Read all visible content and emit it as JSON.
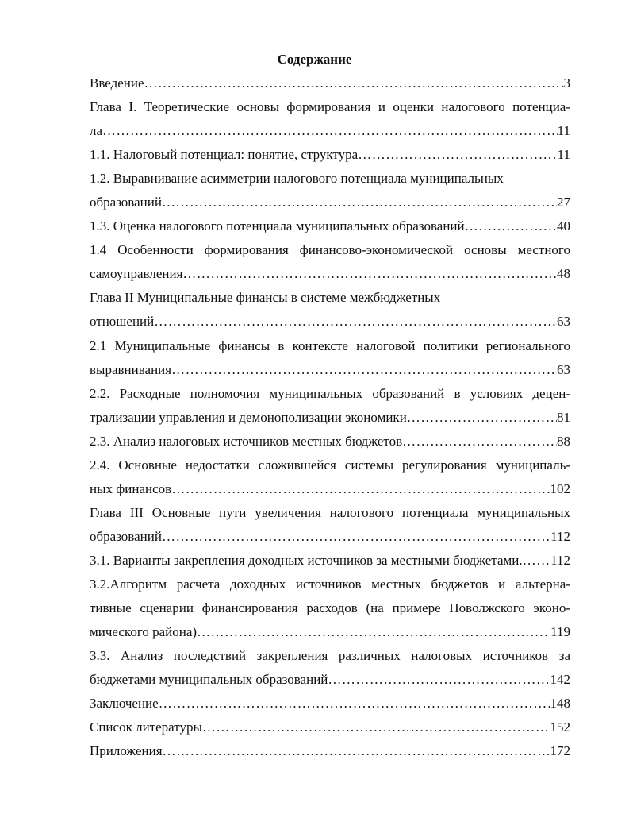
{
  "title": "Содержание",
  "entries": [
    {
      "lines": [],
      "last": "Введение",
      "page": "3"
    },
    {
      "lines": [
        "Глава I. Теоретические основы формирования и оценки налогового потенциа-"
      ],
      "last": "ла",
      "page": "11"
    },
    {
      "lines": [],
      "last": "1.1. Налоговый потенциал: понятие, структура",
      "page": "11"
    },
    {
      "lines": [
        "1.2. Выравнивание асимметрии налогового потенциала муниципальных"
      ],
      "last": "образований ",
      "page": "27"
    },
    {
      "lines": [],
      "last": "1.3. Оценка налогового потенциала муниципальных образований",
      "page": "40"
    },
    {
      "lines": [
        "1.4 Особенности формирования финансово-экономической основы местного"
      ],
      "last": "самоуправления",
      "page": "48"
    },
    {
      "lines": [
        "Глава II Муниципальные финансы в системе межбюджетных"
      ],
      "last": "отношений",
      "page": "63"
    },
    {
      "lines": [
        "2.1 Муниципальные финансы в контексте налоговой политики регионального"
      ],
      "last": "выравнивания",
      "page": "63"
    },
    {
      "lines": [
        "2.2. Расходные полномочия муниципальных образований в условиях децен-"
      ],
      "last": "трализации управления и демонополизации экономики",
      "page": "81"
    },
    {
      "lines": [],
      "last": "2.3. Анализ налоговых источников местных бюджетов ",
      "page": "88"
    },
    {
      "lines": [
        "2.4. Основные недостатки сложившейся системы регулирования муниципаль-"
      ],
      "last": "ных финансов ",
      "page": "102"
    },
    {
      "lines": [
        "Глава III Основные пути увеличения налогового потенциала муниципальных"
      ],
      "last": "образований",
      "page": "112"
    },
    {
      "lines": [],
      "last": "3.1. Варианты закрепления доходных источников за местными бюджетами.",
      "page": "112"
    },
    {
      "lines": [
        "3.2.Алгоритм расчета доходных источников местных бюджетов и альтерна-",
        "тивные сценарии финансирования расходов (на примере Поволжского эконо-"
      ],
      "last": "мического района)",
      "page": "119"
    },
    {
      "lines": [
        "3.3. Анализ последствий закрепления различных налоговых источников за"
      ],
      "last": "бюджетами муниципальных образований",
      "page": "142"
    },
    {
      "lines": [],
      "last": "Заключение",
      "page": "148"
    },
    {
      "lines": [],
      "last": "Список литературы ",
      "page": "152"
    },
    {
      "lines": [],
      "last": "Приложения ",
      "page": "172"
    }
  ]
}
